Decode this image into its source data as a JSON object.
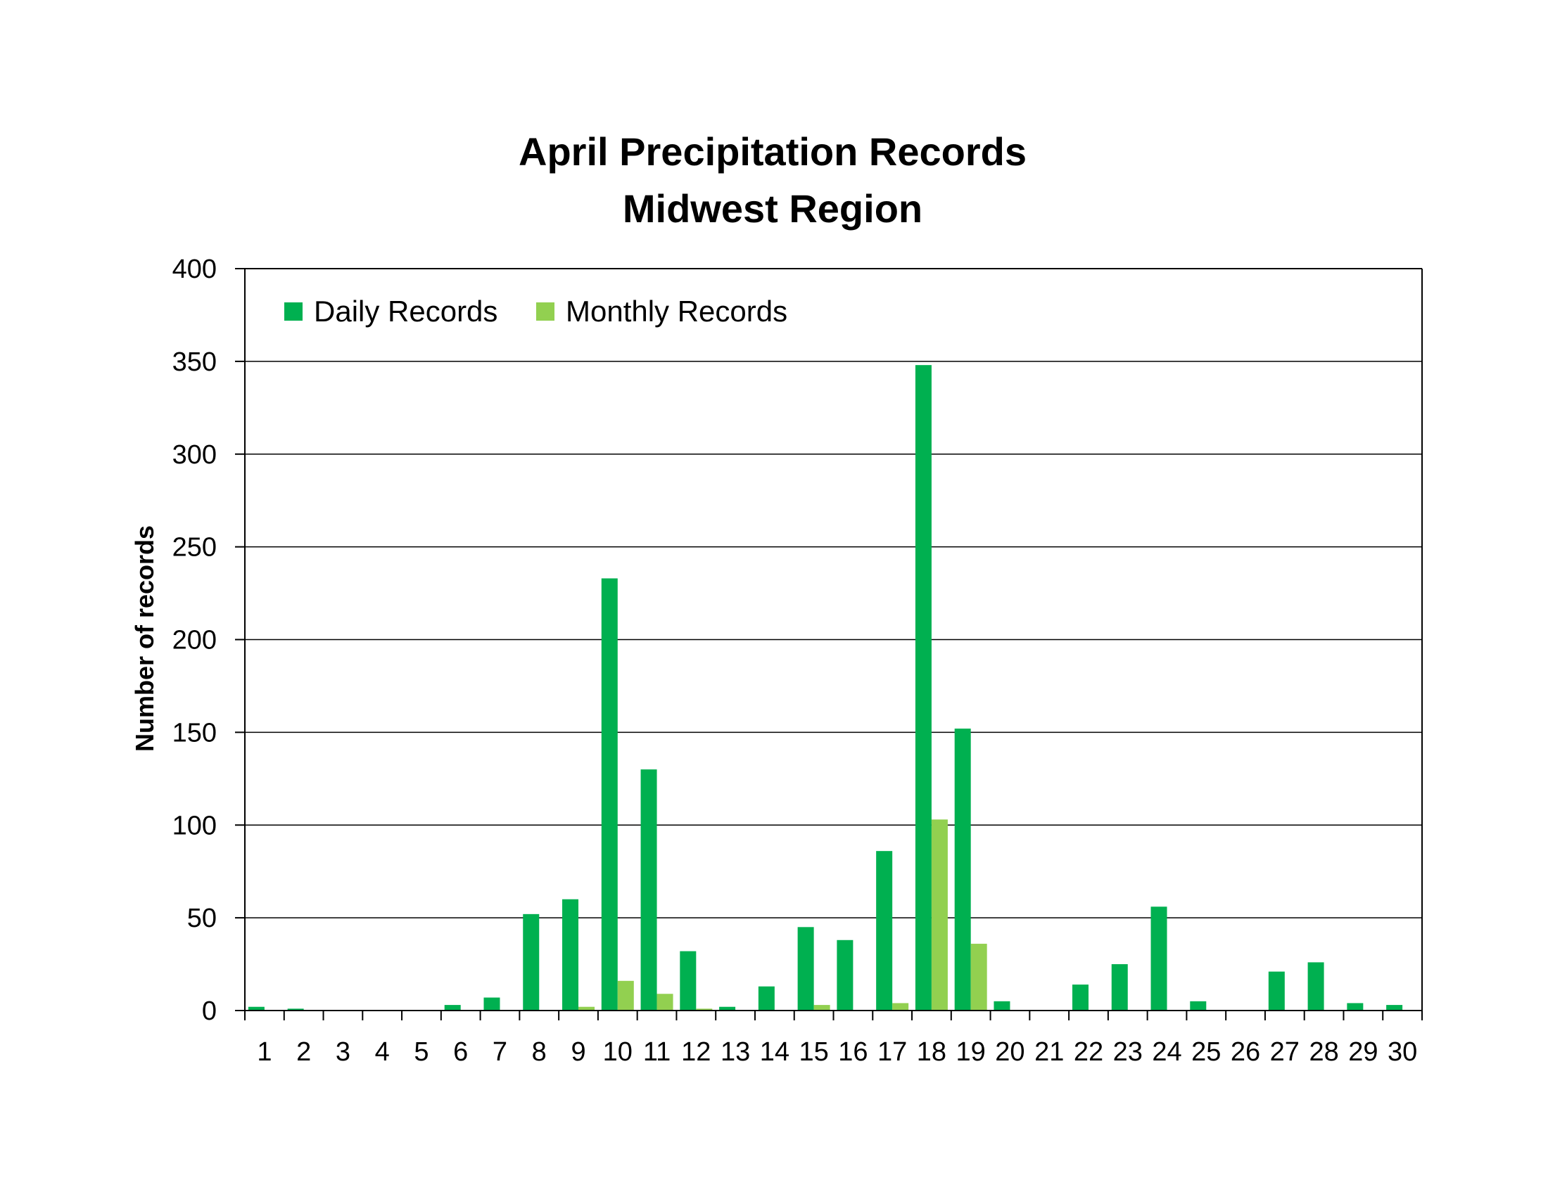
{
  "chart_data": {
    "type": "bar",
    "title_line1": "April Precipitation Records",
    "title_line2": "Midwest Region",
    "xlabel": "",
    "ylabel": "Number of records",
    "ylim": [
      0,
      400
    ],
    "yticks": [
      0,
      50,
      100,
      150,
      200,
      250,
      300,
      350,
      400
    ],
    "grid": true,
    "legend_position": "top-left",
    "categories": [
      "1",
      "2",
      "3",
      "4",
      "5",
      "6",
      "7",
      "8",
      "9",
      "10",
      "11",
      "12",
      "13",
      "14",
      "15",
      "16",
      "17",
      "18",
      "19",
      "20",
      "21",
      "22",
      "23",
      "24",
      "25",
      "26",
      "27",
      "28",
      "29",
      "30"
    ],
    "series": [
      {
        "name": "Daily Records",
        "color": "#00b050",
        "values": [
          2,
          1,
          0,
          0,
          0,
          3,
          7,
          52,
          60,
          233,
          130,
          32,
          2,
          13,
          45,
          38,
          86,
          348,
          152,
          5,
          0,
          14,
          25,
          56,
          5,
          0,
          21,
          26,
          4,
          3
        ]
      },
      {
        "name": "Monthly Records",
        "color": "#92d050",
        "values": [
          0,
          0,
          0,
          0,
          0,
          0,
          0,
          0,
          2,
          16,
          9,
          1,
          0,
          0,
          3,
          0,
          4,
          103,
          36,
          0,
          0,
          0,
          0,
          0,
          0,
          0,
          0,
          0,
          0,
          0
        ]
      }
    ]
  }
}
